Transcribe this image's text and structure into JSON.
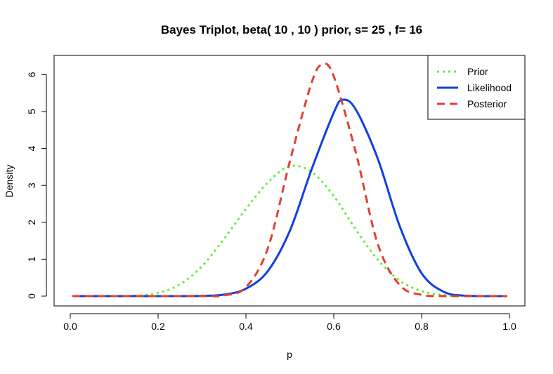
{
  "chart_data": {
    "type": "line",
    "title": "Bayes Triplot, beta( 10 , 10 ) prior, s= 25 , f= 16",
    "xlabel": "p",
    "ylabel": "Density",
    "xlim": [
      0,
      1
    ],
    "ylim": [
      0,
      6.3
    ],
    "x_ticks": [
      "0.0",
      "0.2",
      "0.4",
      "0.6",
      "0.8",
      "1.0"
    ],
    "y_ticks": [
      "0",
      "1",
      "2",
      "3",
      "4",
      "5",
      "6"
    ],
    "grid": false,
    "legend_position": "top-right",
    "series": [
      {
        "name": "Prior",
        "color": "#66ee33",
        "dash": "dotted",
        "x": [
          0.005,
          0.1,
          0.15,
          0.2,
          0.25,
          0.3,
          0.35,
          0.4,
          0.45,
          0.5,
          0.55,
          0.6,
          0.65,
          0.7,
          0.75,
          0.8,
          0.85,
          0.9,
          0.995
        ],
        "y": [
          0.0,
          0.001,
          0.013,
          0.087,
          0.32,
          0.81,
          1.55,
          2.36,
          3.08,
          3.52,
          3.36,
          2.71,
          1.81,
          0.99,
          0.42,
          0.135,
          0.03,
          0.004,
          0.0
        ]
      },
      {
        "name": "Likelihood",
        "color": "#1040e0",
        "dash": "solid",
        "x": [
          0.005,
          0.25,
          0.3,
          0.35,
          0.4,
          0.45,
          0.5,
          0.55,
          0.6,
          0.62,
          0.65,
          0.7,
          0.75,
          0.8,
          0.85,
          0.9,
          0.995
        ],
        "y": [
          0.0,
          0.001,
          0.007,
          0.04,
          0.2,
          0.68,
          1.77,
          3.45,
          4.97,
          5.32,
          5.06,
          3.73,
          1.9,
          0.62,
          0.12,
          0.012,
          0.0
        ]
      },
      {
        "name": "Posterior",
        "color": "#e04030",
        "dash": "dashed",
        "x": [
          0.005,
          0.3,
          0.35,
          0.4,
          0.45,
          0.5,
          0.55,
          0.575,
          0.6,
          0.65,
          0.7,
          0.75,
          0.8,
          0.85,
          0.9,
          0.995
        ],
        "y": [
          0.0,
          0.001,
          0.02,
          0.24,
          1.3,
          3.65,
          5.8,
          6.28,
          5.95,
          3.9,
          1.42,
          0.3,
          0.035,
          0.002,
          0.0,
          0.0
        ]
      }
    ]
  }
}
